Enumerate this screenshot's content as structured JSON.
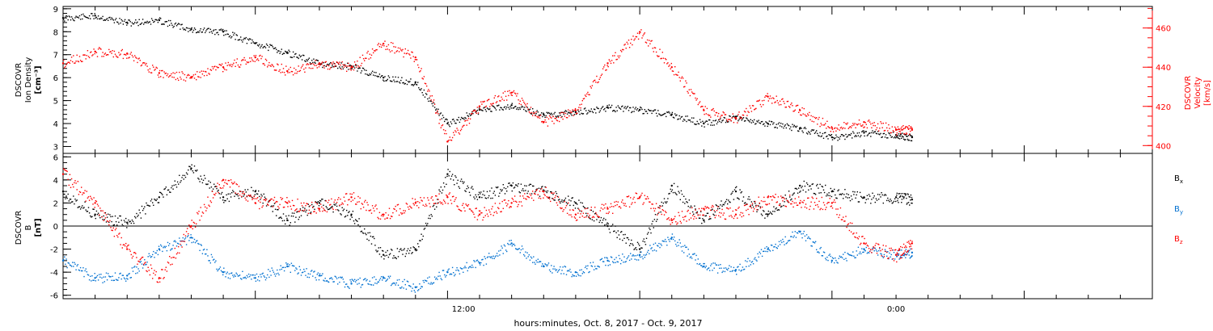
{
  "chart_data": [
    {
      "type": "scatter",
      "panel": "top",
      "ylabel_left": [
        "DSCOVR",
        "Ion Density",
        "[cm⁻³]"
      ],
      "ylabel_right": [
        "DSCOVR",
        "Velocity",
        "[km/s]"
      ],
      "ylim_left": [
        2.7,
        9.1
      ],
      "ylim_right": [
        396,
        471
      ],
      "yticks_left": [
        "3",
        "4",
        "5",
        "6",
        "7",
        "8",
        "9"
      ],
      "yticks_right": [
        "400",
        "420",
        "440",
        "460"
      ],
      "x_range_hours": [
        0,
        34
      ],
      "series": [
        {
          "axis": "left",
          "color": "#000000",
          "x": [
            0,
            1,
            2,
            3,
            4,
            5,
            6,
            7,
            8,
            9,
            10,
            11,
            12,
            13,
            14,
            15,
            16,
            17,
            18,
            19,
            20,
            21,
            22,
            23,
            24,
            25,
            26,
            26.5
          ],
          "y": [
            8.6,
            8.7,
            8.4,
            8.5,
            8.1,
            8.0,
            7.5,
            7.1,
            6.6,
            6.5,
            6.0,
            5.8,
            4.0,
            4.6,
            4.8,
            4.4,
            4.5,
            4.7,
            4.6,
            4.4,
            4.0,
            4.3,
            4.0,
            3.8,
            3.4,
            3.6,
            3.5,
            3.4
          ]
        },
        {
          "axis": "right",
          "color": "#ff0000",
          "x": [
            0,
            1,
            2,
            3,
            4,
            5,
            6,
            7,
            8,
            9,
            10,
            11,
            12,
            13,
            14,
            15,
            16,
            17,
            18,
            19,
            20,
            21,
            22,
            23,
            24,
            25,
            26,
            26.5
          ],
          "y": [
            442,
            448,
            447,
            437,
            435,
            440,
            445,
            438,
            442,
            440,
            452,
            445,
            402,
            420,
            427,
            412,
            418,
            442,
            458,
            440,
            418,
            414,
            425,
            418,
            409,
            412,
            408,
            408
          ]
        }
      ]
    },
    {
      "type": "scatter",
      "panel": "bottom",
      "ylabel_left": [
        "DSCOVR",
        "B",
        "[nT]"
      ],
      "ylim": [
        -6.3,
        6.3
      ],
      "yticks": [
        "6",
        "4",
        "2",
        "0",
        "-2",
        "-4",
        "-6"
      ],
      "x_tick_labels": [
        "12:00",
        "0:00"
      ],
      "x_tick_hours": [
        12.5,
        26
      ],
      "legend": [
        "B",
        "B",
        "B"
      ],
      "legend_subscripts": [
        "x",
        "y",
        "z"
      ],
      "legend_placement": "right",
      "series": [
        {
          "name": "Bx",
          "color": "#000000",
          "x": [
            0,
            1,
            2,
            3,
            4,
            5,
            6,
            7,
            8,
            9,
            10,
            11,
            12,
            13,
            14,
            15,
            16,
            17,
            18,
            19,
            20,
            21,
            22,
            23,
            24,
            25,
            26,
            26.5
          ],
          "y": [
            3.0,
            1.0,
            0.3,
            2.5,
            5.0,
            2.5,
            3.0,
            0.5,
            2.0,
            1.0,
            -2.5,
            -2.0,
            4.5,
            2.5,
            3.5,
            3.0,
            2.0,
            0.0,
            -2.0,
            3.5,
            0.5,
            3.0,
            1.0,
            3.5,
            3.0,
            2.5,
            2.5,
            2.3
          ]
        },
        {
          "name": "By",
          "color": "#0070d0",
          "x": [
            0,
            1,
            2,
            3,
            4,
            5,
            6,
            7,
            8,
            9,
            10,
            11,
            12,
            13,
            14,
            15,
            16,
            17,
            18,
            19,
            20,
            21,
            22,
            23,
            24,
            25,
            26,
            26.5
          ],
          "y": [
            -3.0,
            -4.5,
            -4.3,
            -2.0,
            -1.0,
            -4.0,
            -4.5,
            -3.5,
            -4.3,
            -5.0,
            -4.5,
            -5.3,
            -4.0,
            -3.2,
            -1.5,
            -3.5,
            -4.0,
            -3.0,
            -2.5,
            -1.0,
            -3.5,
            -3.8,
            -2.0,
            -0.5,
            -3.0,
            -2.0,
            -2.5,
            -2.3
          ]
        },
        {
          "name": "Bz",
          "color": "#ff0000",
          "x": [
            0,
            1,
            2,
            3,
            4,
            5,
            6,
            7,
            8,
            9,
            10,
            11,
            12,
            13,
            14,
            15,
            16,
            17,
            18,
            19,
            20,
            21,
            22,
            23,
            24,
            25,
            26,
            26.5
          ],
          "y": [
            4.5,
            2.0,
            -2.0,
            -4.5,
            0.0,
            4.0,
            2.0,
            2.0,
            1.5,
            2.5,
            1.0,
            2.0,
            2.5,
            1.0,
            2.0,
            3.0,
            1.0,
            1.5,
            2.5,
            0.5,
            1.5,
            1.0,
            2.5,
            2.0,
            2.0,
            -1.5,
            -2.5,
            -1.5
          ]
        }
      ]
    }
  ],
  "xlabel": "hours:minutes, Oct.  8, 2017 - Oct.  9, 2017"
}
